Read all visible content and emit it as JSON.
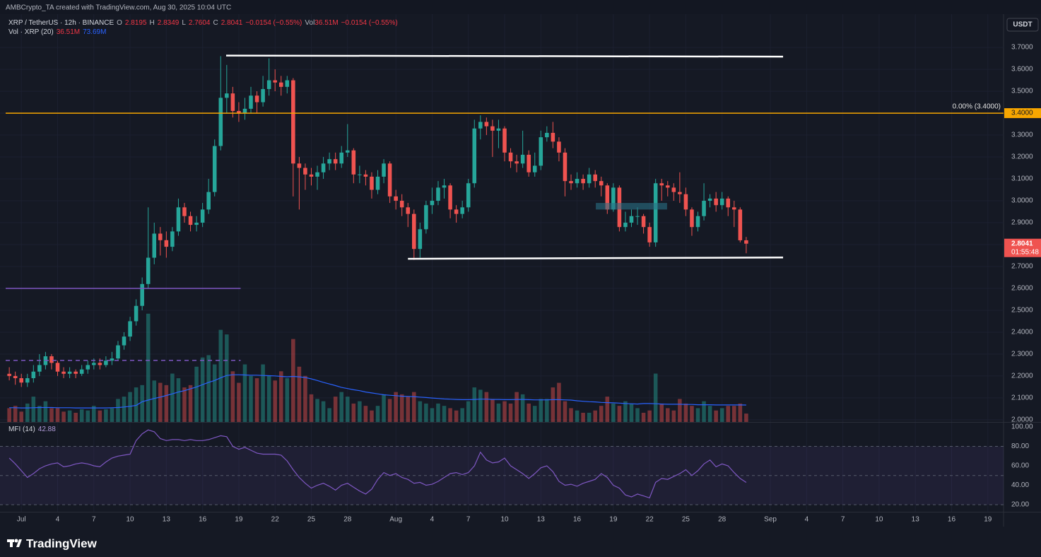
{
  "header": "AMBCrypto_TA created with TradingView.com, Aug 30, 2025 10:04 UTC",
  "footer": {
    "brand": "TradingView"
  },
  "chart_data": {
    "type": "candlestick",
    "currency": "USDT",
    "legend": {
      "symbol": "XRP / TetherUS · 12h · BINANCE",
      "ohlc": [
        [
          "O",
          "2.8195"
        ],
        [
          "H",
          "2.8349"
        ],
        [
          "L",
          "2.7604"
        ],
        [
          "C",
          "2.8041"
        ]
      ],
      "change": "−0.0154 (−0.55%)",
      "vol_label": "Vol",
      "vol_value": "36.51M",
      "vol_change": "−0.0154 (−0.55%)"
    },
    "volume_legend": {
      "name": "Vol · XRP (20)",
      "values": [
        "36.51M",
        "73.69M"
      ]
    },
    "price_tag": {
      "price": "2.8041",
      "countdown": "01:55:48"
    },
    "fib_label": "0.00% (3.4000)",
    "fib_tag": "3.4000",
    "up_color": "#26a69a",
    "down_color": "#ef5350",
    "grid": true,
    "xlim": [
      -0.6,
      164.6
    ],
    "ylim": [
      1.99,
      3.852
    ],
    "vol_lim": [
      0,
      1770
    ],
    "xticks": [
      {
        "value": 2,
        "label": "Jul"
      },
      {
        "value": 8,
        "label": "4"
      },
      {
        "value": 14,
        "label": "7"
      },
      {
        "value": 20,
        "label": "10"
      },
      {
        "value": 26,
        "label": "13"
      },
      {
        "value": 32,
        "label": "16"
      },
      {
        "value": 38,
        "label": "19"
      },
      {
        "value": 44,
        "label": "22"
      },
      {
        "value": 50,
        "label": "25"
      },
      {
        "value": 56,
        "label": "28"
      },
      {
        "value": 64,
        "label": "Aug"
      },
      {
        "value": 70,
        "label": "4"
      },
      {
        "value": 76,
        "label": "7"
      },
      {
        "value": 82,
        "label": "10"
      },
      {
        "value": 88,
        "label": "13"
      },
      {
        "value": 94,
        "label": "16"
      },
      {
        "value": 100,
        "label": "19"
      },
      {
        "value": 106,
        "label": "22"
      },
      {
        "value": 112,
        "label": "25"
      },
      {
        "value": 118,
        "label": "28"
      },
      {
        "value": 126,
        "label": "Sep"
      },
      {
        "value": 132,
        "label": "4"
      },
      {
        "value": 138,
        "label": "7"
      },
      {
        "value": 144,
        "label": "10"
      },
      {
        "value": 150,
        "label": "13"
      },
      {
        "value": 156,
        "label": "16"
      },
      {
        "value": 162,
        "label": "19"
      }
    ],
    "yticks": [
      {
        "value": 2.0,
        "label": "2.0000"
      },
      {
        "value": 2.1,
        "label": "2.1000"
      },
      {
        "value": 2.2,
        "label": "2.2000"
      },
      {
        "value": 2.3,
        "label": "2.3000"
      },
      {
        "value": 2.4,
        "label": "2.4000"
      },
      {
        "value": 2.5,
        "label": "2.5000"
      },
      {
        "value": 2.6,
        "label": "2.6000"
      },
      {
        "value": 2.7,
        "label": "2.7000"
      },
      {
        "value": 2.8,
        "label": "2.8000"
      },
      {
        "value": 2.9,
        "label": "2.9000"
      },
      {
        "value": 3.0,
        "label": "3.0000"
      },
      {
        "value": 3.1,
        "label": "3.1000"
      },
      {
        "value": 3.2,
        "label": "3.2000"
      },
      {
        "value": 3.3,
        "label": "3.3000"
      },
      {
        "value": 3.4,
        "label": "3.4000"
      },
      {
        "value": 3.5,
        "label": "3.5000"
      },
      {
        "value": 3.6,
        "label": "3.6000"
      },
      {
        "value": 3.7,
        "label": "3.7000"
      }
    ],
    "open": [
      2.21,
      2.2,
      2.19,
      2.17,
      2.19,
      2.22,
      2.25,
      2.29,
      2.26,
      2.22,
      2.21,
      2.22,
      2.21,
      2.23,
      2.25,
      2.26,
      2.25,
      2.27,
      2.28,
      2.34,
      2.38,
      2.45,
      2.52,
      2.62,
      2.74,
      2.85,
      2.82,
      2.79,
      2.86,
      2.97,
      2.93,
      2.89,
      2.9,
      2.96,
      3.04,
      3.25,
      3.47,
      3.49,
      3.41,
      3.4,
      3.42,
      3.48,
      3.45,
      3.51,
      3.55,
      3.54,
      3.52,
      3.55,
      3.17,
      3.15,
      3.12,
      3.11,
      3.13,
      3.17,
      3.19,
      3.17,
      3.22,
      3.23,
      3.12,
      3.12,
      3.11,
      3.05,
      3.11,
      3.17,
      3.02,
      3.0,
      2.97,
      2.94,
      2.78,
      2.87,
      2.98,
      3.0,
      3.06,
      3.07,
      2.96,
      2.94,
      2.97,
      3.08,
      3.33,
      3.36,
      3.34,
      3.32,
      3.33,
      3.22,
      3.18,
      3.17,
      3.21,
      3.13,
      3.16,
      3.29,
      3.31,
      3.27,
      3.22,
      3.09,
      3.08,
      3.1,
      3.08,
      3.12,
      3.09,
      3.07,
      2.96,
      3.06,
      2.88,
      2.9,
      2.93,
      2.93,
      2.88,
      2.81,
      3.08,
      3.07,
      3.06,
      3.04,
      3.03,
      2.96,
      2.88,
      2.93,
      3.0,
      3.01,
      2.98,
      3.01,
      2.97,
      2.96,
      2.8195
    ],
    "high": [
      2.24,
      2.22,
      2.21,
      2.21,
      2.25,
      2.3,
      2.31,
      2.3,
      2.27,
      2.24,
      2.24,
      2.23,
      2.25,
      2.27,
      2.28,
      2.28,
      2.29,
      2.31,
      2.36,
      2.4,
      2.47,
      2.55,
      2.65,
      2.97,
      2.9,
      2.88,
      2.86,
      2.88,
      3.01,
      2.99,
      2.95,
      2.93,
      2.99,
      3.1,
      3.28,
      3.66,
      3.62,
      3.52,
      3.45,
      3.47,
      3.52,
      3.5,
      3.57,
      3.65,
      3.6,
      3.57,
      3.57,
      3.56,
      3.2,
      3.17,
      3.15,
      3.16,
      3.2,
      3.22,
      3.22,
      3.25,
      3.35,
      3.24,
      3.16,
      3.14,
      3.13,
      3.14,
      3.19,
      3.18,
      3.05,
      3.03,
      2.99,
      2.96,
      2.9,
      3.0,
      3.06,
      3.09,
      3.1,
      3.08,
      2.98,
      3.0,
      3.1,
      3.37,
      3.39,
      3.38,
      3.37,
      3.37,
      3.34,
      3.24,
      3.21,
      3.32,
      3.23,
      3.22,
      3.32,
      3.34,
      3.36,
      3.29,
      3.24,
      3.12,
      3.13,
      3.12,
      3.15,
      3.14,
      3.11,
      3.08,
      3.08,
      3.07,
      2.95,
      2.96,
      2.97,
      2.94,
      2.9,
      3.1,
      3.1,
      3.09,
      3.08,
      3.13,
      3.06,
      2.97,
      2.95,
      3.08,
      3.03,
      3.04,
      3.04,
      3.02,
      3.0,
      2.97,
      2.8349
    ],
    "low": [
      2.18,
      2.16,
      2.15,
      2.15,
      2.17,
      2.2,
      2.23,
      2.23,
      2.2,
      2.19,
      2.19,
      2.19,
      2.2,
      2.21,
      2.23,
      2.23,
      2.24,
      2.25,
      2.27,
      2.32,
      2.36,
      2.43,
      2.5,
      2.6,
      2.71,
      2.75,
      2.74,
      2.77,
      2.84,
      2.9,
      2.86,
      2.86,
      2.88,
      2.94,
      3.02,
      3.23,
      3.4,
      3.38,
      3.36,
      3.37,
      3.4,
      3.4,
      3.43,
      3.48,
      3.5,
      3.48,
      3.49,
      3.02,
      2.96,
      3.05,
      3.07,
      3.05,
      3.1,
      3.14,
      3.14,
      3.15,
      3.2,
      3.08,
      3.08,
      3.07,
      3.01,
      3.03,
      3.08,
      2.99,
      2.96,
      2.93,
      2.88,
      2.73,
      2.74,
      2.85,
      2.94,
      2.98,
      3.01,
      2.92,
      2.9,
      2.92,
      2.95,
      3.06,
      3.28,
      3.3,
      3.2,
      3.24,
      3.18,
      3.15,
      3.13,
      3.15,
      3.11,
      3.11,
      3.14,
      3.27,
      3.24,
      3.18,
      3.02,
      3.05,
      3.06,
      3.05,
      3.06,
      3.06,
      3.02,
      2.94,
      2.95,
      2.86,
      2.86,
      2.88,
      2.89,
      2.85,
      2.79,
      2.79,
      3.0,
      3.02,
      3.0,
      2.99,
      2.93,
      2.84,
      2.86,
      2.91,
      2.97,
      2.95,
      2.96,
      2.93,
      2.88,
      2.81,
      2.7604
    ],
    "close": [
      2.2,
      2.19,
      2.17,
      2.19,
      2.22,
      2.25,
      2.29,
      2.26,
      2.22,
      2.21,
      2.22,
      2.21,
      2.23,
      2.25,
      2.26,
      2.25,
      2.27,
      2.28,
      2.34,
      2.38,
      2.45,
      2.52,
      2.62,
      2.74,
      2.85,
      2.82,
      2.79,
      2.86,
      2.97,
      2.93,
      2.89,
      2.9,
      2.96,
      3.04,
      3.25,
      3.47,
      3.49,
      3.41,
      3.4,
      3.42,
      3.48,
      3.45,
      3.51,
      3.55,
      3.54,
      3.52,
      3.55,
      3.17,
      3.15,
      3.12,
      3.11,
      3.13,
      3.17,
      3.19,
      3.17,
      3.22,
      3.23,
      3.12,
      3.12,
      3.11,
      3.05,
      3.11,
      3.17,
      3.02,
      3.0,
      2.97,
      2.94,
      2.78,
      2.87,
      2.98,
      3.0,
      3.06,
      3.07,
      2.96,
      2.94,
      2.97,
      3.08,
      3.33,
      3.36,
      3.34,
      3.32,
      3.33,
      3.22,
      3.18,
      3.17,
      3.21,
      3.13,
      3.16,
      3.29,
      3.31,
      3.27,
      3.22,
      3.09,
      3.08,
      3.1,
      3.08,
      3.12,
      3.09,
      3.07,
      2.96,
      3.06,
      2.88,
      2.9,
      2.93,
      2.93,
      2.88,
      2.81,
      3.08,
      3.07,
      3.06,
      3.04,
      3.03,
      2.96,
      2.88,
      2.93,
      3.0,
      3.01,
      2.98,
      3.01,
      2.97,
      2.96,
      2.8195,
      2.8041
    ],
    "volume": [
      60,
      70,
      45,
      80,
      110,
      70,
      90,
      60,
      60,
      45,
      50,
      40,
      55,
      50,
      70,
      50,
      55,
      60,
      100,
      110,
      130,
      150,
      160,
      470,
      180,
      170,
      160,
      210,
      190,
      150,
      160,
      240,
      280,
      290,
      250,
      400,
      380,
      220,
      170,
      250,
      200,
      190,
      250,
      200,
      180,
      220,
      190,
      360,
      240,
      200,
      120,
      100,
      90,
      60,
      110,
      130,
      110,
      80,
      90,
      70,
      50,
      70,
      120,
      100,
      130,
      120,
      110,
      130,
      90,
      80,
      60,
      80,
      70,
      60,
      50,
      60,
      90,
      150,
      140,
      130,
      100,
      80,
      90,
      80,
      130,
      120,
      80,
      70,
      100,
      100,
      150,
      170,
      90,
      60,
      50,
      40,
      40,
      50,
      70,
      110,
      80,
      70,
      90,
      80,
      60,
      40,
      50,
      210,
      80,
      60,
      50,
      100,
      80,
      70,
      60,
      90,
      70,
      50,
      60,
      70,
      70,
      80,
      36.51
    ],
    "volume_ma": {
      "color": "#2962ff",
      "values": [
        62,
        62,
        61,
        61,
        62,
        63,
        63,
        63,
        62,
        62,
        62,
        61,
        61,
        61,
        61,
        61,
        61,
        62,
        63,
        65,
        68,
        72,
        88,
        95,
        102,
        108,
        115,
        122,
        130,
        136,
        144,
        152,
        162,
        172,
        180,
        192,
        202,
        205,
        205,
        204,
        203,
        203,
        202,
        201,
        200,
        198,
        196,
        198,
        196,
        193,
        187,
        180,
        172,
        165,
        158,
        150,
        145,
        140,
        136,
        130,
        126,
        122,
        118,
        116,
        114,
        112,
        111,
        110,
        108,
        106,
        104,
        102,
        100,
        99,
        98,
        97,
        97,
        98,
        99,
        99,
        98,
        98,
        97,
        97,
        98,
        98,
        97,
        96,
        96,
        96,
        97,
        97,
        96,
        95,
        92,
        90,
        88,
        87,
        85,
        84,
        83,
        82,
        80,
        79,
        78,
        80,
        80,
        79,
        78,
        77,
        77,
        77,
        76,
        76,
        75,
        75,
        75,
        74,
        74,
        74,
        74,
        74,
        73.69
      ]
    },
    "lines": [
      {
        "x": [
          35.9,
          128.1
        ],
        "y": [
          3.663,
          3.658
        ],
        "color": "#ffffff",
        "width": 2.5
      },
      {
        "x": [
          66,
          128.1
        ],
        "y": [
          2.735,
          2.741
        ],
        "color": "#ffffff",
        "width": 2.5
      },
      {
        "x": [
          -0.6,
          164.6
        ],
        "y": [
          3.4,
          3.4
        ],
        "color": "#f7a600",
        "width": 1.5
      },
      {
        "x": [
          -0.6,
          38.3
        ],
        "y": [
          2.6,
          2.6
        ],
        "color": "#7e57c2",
        "width": 1.5
      },
      {
        "x": [
          -0.6,
          38.3
        ],
        "y": [
          2.271,
          2.271
        ],
        "color": "#7e57c2",
        "width": 1.5,
        "dashed": true
      }
    ],
    "rectangles": [
      {
        "x": [
          97.1,
          108.9
        ],
        "y": [
          2.99,
          2.96
        ],
        "color": "#2a6f86"
      }
    ],
    "mfi": {
      "name": "MFI (14)",
      "value": "42.88",
      "color": "#7e57c2",
      "ylim": [
        12.7,
        104.4
      ],
      "band": [
        20,
        80
      ],
      "levels": [
        80,
        50,
        20
      ],
      "yticks": [
        {
          "value": 20,
          "label": "20.00"
        },
        {
          "value": 40,
          "label": "40.00"
        },
        {
          "value": 60,
          "label": "60.00"
        },
        {
          "value": 80,
          "label": "80.00"
        },
        {
          "value": 100,
          "label": "100.00"
        }
      ],
      "values": [
        68,
        62,
        55,
        48,
        52,
        57,
        60,
        62,
        63,
        59,
        60,
        62,
        63,
        62,
        60,
        59,
        64,
        68,
        70,
        71,
        72,
        86,
        93,
        97,
        95,
        88,
        86,
        87,
        87,
        86,
        87,
        86,
        86,
        87,
        89,
        91,
        90,
        80,
        77,
        79,
        76,
        73,
        72,
        72,
        72,
        71,
        65,
        56,
        48,
        42,
        37,
        40,
        42,
        39,
        35,
        40,
        42,
        38,
        34,
        31,
        36,
        46,
        53,
        50,
        52,
        48,
        46,
        42,
        43,
        40,
        41,
        44,
        48,
        52,
        53,
        51,
        53,
        60,
        74,
        66,
        63,
        64,
        68,
        60,
        56,
        52,
        47,
        52,
        58,
        60,
        54,
        44,
        40,
        41,
        39,
        42,
        44,
        46,
        52,
        48,
        40,
        37,
        30,
        28,
        31,
        29,
        27,
        43,
        47,
        46,
        49,
        52,
        56,
        50,
        55,
        62,
        66,
        59,
        62,
        60,
        53,
        47,
        42.88
      ]
    }
  }
}
